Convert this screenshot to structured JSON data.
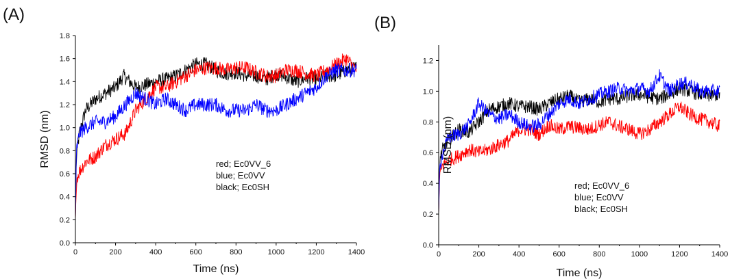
{
  "panel_labels": {
    "a": "(A)",
    "b": "(B)"
  },
  "chart_data": [
    {
      "type": "line",
      "panel": "(A)",
      "xlabel": "Time (ns)",
      "ylabel": "RMSD (nm)",
      "xlim": [
        0,
        1400
      ],
      "ylim": [
        0,
        1.8
      ],
      "xticks": [
        0,
        200,
        400,
        600,
        800,
        1000,
        1200,
        1400
      ],
      "yticks": [
        0.0,
        0.2,
        0.4,
        0.6,
        0.8,
        1.0,
        1.2,
        1.4,
        1.6,
        1.8
      ],
      "legend_text": [
        "red; Ec0VV_6",
        "blue; Ec0VV",
        "black; Ec0SH"
      ],
      "legend_placement": "center-right",
      "series": [
        {
          "color": "#000000",
          "x": [
            0,
            5,
            20,
            50,
            100,
            150,
            200,
            240,
            300,
            350,
            400,
            450,
            500,
            550,
            600,
            650,
            700,
            750,
            800,
            850,
            900,
            950,
            1000,
            1050,
            1100,
            1150,
            1200,
            1250,
            1300,
            1350,
            1400
          ],
          "y": [
            0.2,
            0.75,
            0.95,
            1.15,
            1.25,
            1.3,
            1.35,
            1.45,
            1.35,
            1.37,
            1.4,
            1.42,
            1.45,
            1.5,
            1.55,
            1.55,
            1.5,
            1.47,
            1.48,
            1.45,
            1.45,
            1.42,
            1.47,
            1.44,
            1.4,
            1.43,
            1.42,
            1.45,
            1.45,
            1.5,
            1.52
          ]
        },
        {
          "color": "#ff0000",
          "x": [
            0,
            5,
            20,
            50,
            100,
            150,
            200,
            250,
            300,
            350,
            400,
            450,
            500,
            550,
            600,
            650,
            700,
            750,
            800,
            850,
            900,
            950,
            1000,
            1050,
            1100,
            1150,
            1200,
            1250,
            1300,
            1350,
            1400
          ],
          "y": [
            0.2,
            0.55,
            0.62,
            0.7,
            0.75,
            0.85,
            0.9,
            0.95,
            1.15,
            1.25,
            1.35,
            1.35,
            1.4,
            1.45,
            1.5,
            1.52,
            1.52,
            1.5,
            1.52,
            1.52,
            1.48,
            1.45,
            1.45,
            1.5,
            1.5,
            1.47,
            1.45,
            1.5,
            1.55,
            1.6,
            1.5
          ]
        },
        {
          "color": "#0000ff",
          "x": [
            0,
            5,
            20,
            50,
            100,
            150,
            200,
            250,
            300,
            350,
            400,
            450,
            500,
            550,
            600,
            650,
            700,
            750,
            800,
            850,
            900,
            950,
            1000,
            1050,
            1100,
            1150,
            1200,
            1250,
            1300,
            1350,
            1400
          ],
          "y": [
            0.2,
            0.8,
            0.95,
            1.0,
            1.05,
            1.05,
            1.1,
            1.2,
            1.3,
            1.25,
            1.2,
            1.25,
            1.2,
            1.15,
            1.2,
            1.2,
            1.2,
            1.15,
            1.15,
            1.15,
            1.2,
            1.15,
            1.15,
            1.2,
            1.25,
            1.3,
            1.35,
            1.45,
            1.5,
            1.5,
            1.5
          ]
        }
      ]
    },
    {
      "type": "line",
      "panel": "(B)",
      "xlabel": "Time (ns)",
      "ylabel": "RMSD (nm)",
      "xlim": [
        0,
        1400
      ],
      "ylim": [
        0,
        1.3
      ],
      "xticks": [
        0,
        200,
        400,
        600,
        800,
        1000,
        1200,
        1400
      ],
      "yticks": [
        0.0,
        0.2,
        0.4,
        0.6,
        0.8,
        1.0,
        1.2
      ],
      "legend_text": [
        "red; Ec0VV_6",
        "blue; Ec0VV",
        "black; Ec0SH"
      ],
      "legend_placement": "center-right",
      "series": [
        {
          "color": "#000000",
          "x": [
            0,
            5,
            20,
            50,
            100,
            150,
            200,
            250,
            300,
            350,
            400,
            450,
            500,
            550,
            600,
            650,
            700,
            750,
            800,
            850,
            900,
            950,
            1000,
            1050,
            1100,
            1150,
            1200,
            1250,
            1300,
            1350,
            1400
          ],
          "y": [
            0.2,
            0.55,
            0.62,
            0.68,
            0.75,
            0.73,
            0.8,
            0.88,
            0.9,
            0.92,
            0.9,
            0.9,
            0.88,
            0.92,
            0.95,
            0.97,
            0.93,
            0.95,
            0.93,
            0.95,
            0.95,
            0.97,
            0.98,
            0.96,
            0.95,
            0.98,
            1.02,
            1.0,
            0.98,
            0.97,
            0.98
          ]
        },
        {
          "color": "#ff0000",
          "x": [
            0,
            5,
            20,
            50,
            100,
            150,
            200,
            250,
            300,
            350,
            400,
            450,
            500,
            550,
            600,
            650,
            700,
            750,
            800,
            850,
            900,
            950,
            1000,
            1050,
            1100,
            1150,
            1200,
            1250,
            1300,
            1350,
            1400
          ],
          "y": [
            0.2,
            0.45,
            0.52,
            0.55,
            0.58,
            0.62,
            0.6,
            0.62,
            0.65,
            0.68,
            0.75,
            0.75,
            0.72,
            0.78,
            0.75,
            0.77,
            0.76,
            0.75,
            0.78,
            0.8,
            0.77,
            0.75,
            0.72,
            0.75,
            0.8,
            0.85,
            0.9,
            0.85,
            0.82,
            0.8,
            0.77
          ]
        },
        {
          "color": "#0000ff",
          "x": [
            0,
            5,
            20,
            50,
            100,
            150,
            200,
            250,
            300,
            350,
            400,
            450,
            500,
            550,
            600,
            650,
            700,
            750,
            800,
            850,
            900,
            950,
            1000,
            1050,
            1100,
            1150,
            1200,
            1250,
            1300,
            1350,
            1400
          ],
          "y": [
            0.2,
            0.5,
            0.6,
            0.7,
            0.72,
            0.78,
            0.92,
            0.85,
            0.82,
            0.85,
            0.8,
            0.77,
            0.78,
            0.85,
            0.92,
            0.95,
            0.92,
            0.95,
            0.98,
            1.0,
            1.02,
            1.0,
            1.02,
            1.0,
            1.1,
            1.0,
            1.05,
            1.05,
            1.0,
            1.0,
            1.0
          ]
        }
      ]
    }
  ]
}
